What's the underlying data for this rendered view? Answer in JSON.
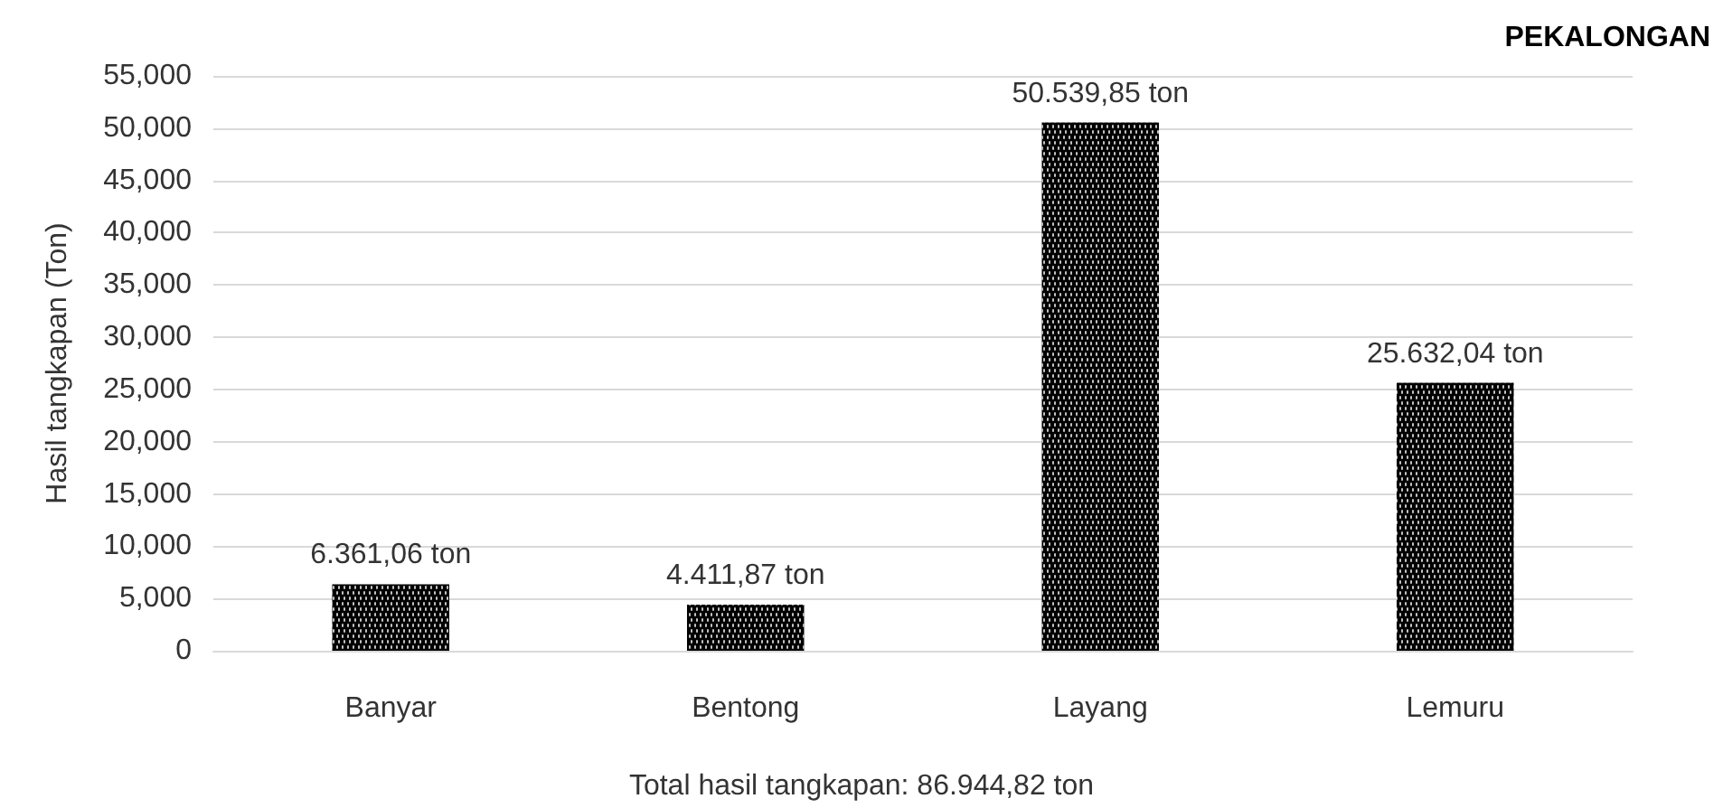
{
  "chart_data": {
    "type": "bar",
    "title": "PEKALONGAN",
    "ylabel": "Hasil tangkapan (Ton)",
    "annotations": [
      "Total hasil tangkapan: 86.944,82 ton"
    ],
    "categories": [
      "Banyar",
      "Bentong",
      "Layang",
      "Lemuru"
    ],
    "values": [
      6361.06,
      4411.87,
      50539.85,
      25632.04
    ],
    "value_labels": [
      "6.361,06 ton",
      "4.411,87 ton",
      "50.539,85 ton",
      "25.632,04 ton"
    ],
    "color": "#000000",
    "ylim": [
      0,
      55000
    ],
    "yticks": [
      {
        "value": 0,
        "label": "0"
      },
      {
        "value": 5000,
        "label": "5,000"
      },
      {
        "value": 10000,
        "label": "10,000"
      },
      {
        "value": 15000,
        "label": "15,000"
      },
      {
        "value": 20000,
        "label": "20,000"
      },
      {
        "value": 25000,
        "label": "25,000"
      },
      {
        "value": 30000,
        "label": "30,000"
      },
      {
        "value": 35000,
        "label": "35,000"
      },
      {
        "value": 40000,
        "label": "40,000"
      },
      {
        "value": 45000,
        "label": "45,000"
      },
      {
        "value": 50000,
        "label": "50,000"
      },
      {
        "value": 55000,
        "label": "55,000"
      }
    ],
    "grid": "y",
    "legend": false
  }
}
